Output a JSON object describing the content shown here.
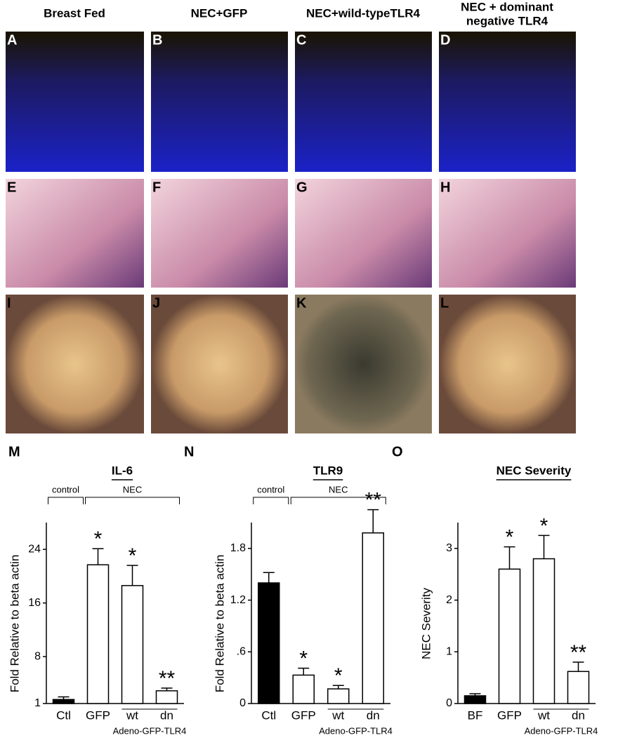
{
  "figure": {
    "column_titles": [
      [
        "Breast Fed"
      ],
      [
        "NEC+GFP"
      ],
      [
        "NEC+wild-typeTLR4"
      ],
      [
        "NEC + dominant",
        "negative TLR4"
      ]
    ],
    "panel_letters": [
      "A",
      "B",
      "C",
      "D",
      "E",
      "F",
      "G",
      "H",
      "I",
      "J",
      "K",
      "L"
    ]
  },
  "chart_data": [
    {
      "type": "bar",
      "panel": "M",
      "title": "IL-6",
      "y_label": "Fold Relative to beta actin",
      "categories": [
        "Ctl",
        "GFP",
        "wt",
        "dn"
      ],
      "colors": [
        "#000000",
        "#ffffff",
        "#ffffff",
        "#ffffff"
      ],
      "values": [
        1.6,
        21.7,
        18.6,
        2.9
      ],
      "errors": [
        0.4,
        2.4,
        3.0,
        0.4
      ],
      "significance": [
        null,
        "*",
        "*",
        "**"
      ],
      "groups": [
        "control",
        "NEC"
      ],
      "x_group_label": "Adeno-GFP-TLR4",
      "ylim": [
        1,
        28
      ],
      "yticks": [
        1,
        8,
        16,
        24
      ]
    },
    {
      "type": "bar",
      "panel": "N",
      "title": "TLR9",
      "y_label": "Fold Relative to beta actin",
      "categories": [
        "Ctl",
        "GFP",
        "wt",
        "dn"
      ],
      "colors": [
        "#000000",
        "#ffffff",
        "#ffffff",
        "#ffffff"
      ],
      "values": [
        1.4,
        0.33,
        0.17,
        1.98
      ],
      "errors": [
        0.12,
        0.08,
        0.04,
        0.27
      ],
      "significance": [
        null,
        "*",
        "*",
        "**"
      ],
      "groups": [
        "control",
        "NEC"
      ],
      "x_group_label": "Adeno-GFP-TLR4",
      "ylim": [
        0,
        2.1
      ],
      "yticks": [
        0,
        {
          "value": 0.6,
          "label": ".6"
        },
        1.2,
        1.8
      ]
    },
    {
      "type": "bar",
      "panel": "O",
      "title": "NEC Severity",
      "y_label": "NEC Severity",
      "categories": [
        "BF",
        "GFP",
        "wt",
        "dn"
      ],
      "colors": [
        "#000000",
        "#ffffff",
        "#ffffff",
        "#ffffff"
      ],
      "values": [
        0.15,
        2.6,
        2.8,
        0.62
      ],
      "errors": [
        0.04,
        0.43,
        0.45,
        0.18
      ],
      "significance": [
        null,
        "*",
        "*",
        "**"
      ],
      "x_group_label": "Adeno-GFP-TLR4",
      "ylim": [
        0,
        3.5
      ],
      "yticks": [
        0,
        1,
        2,
        3
      ]
    }
  ]
}
